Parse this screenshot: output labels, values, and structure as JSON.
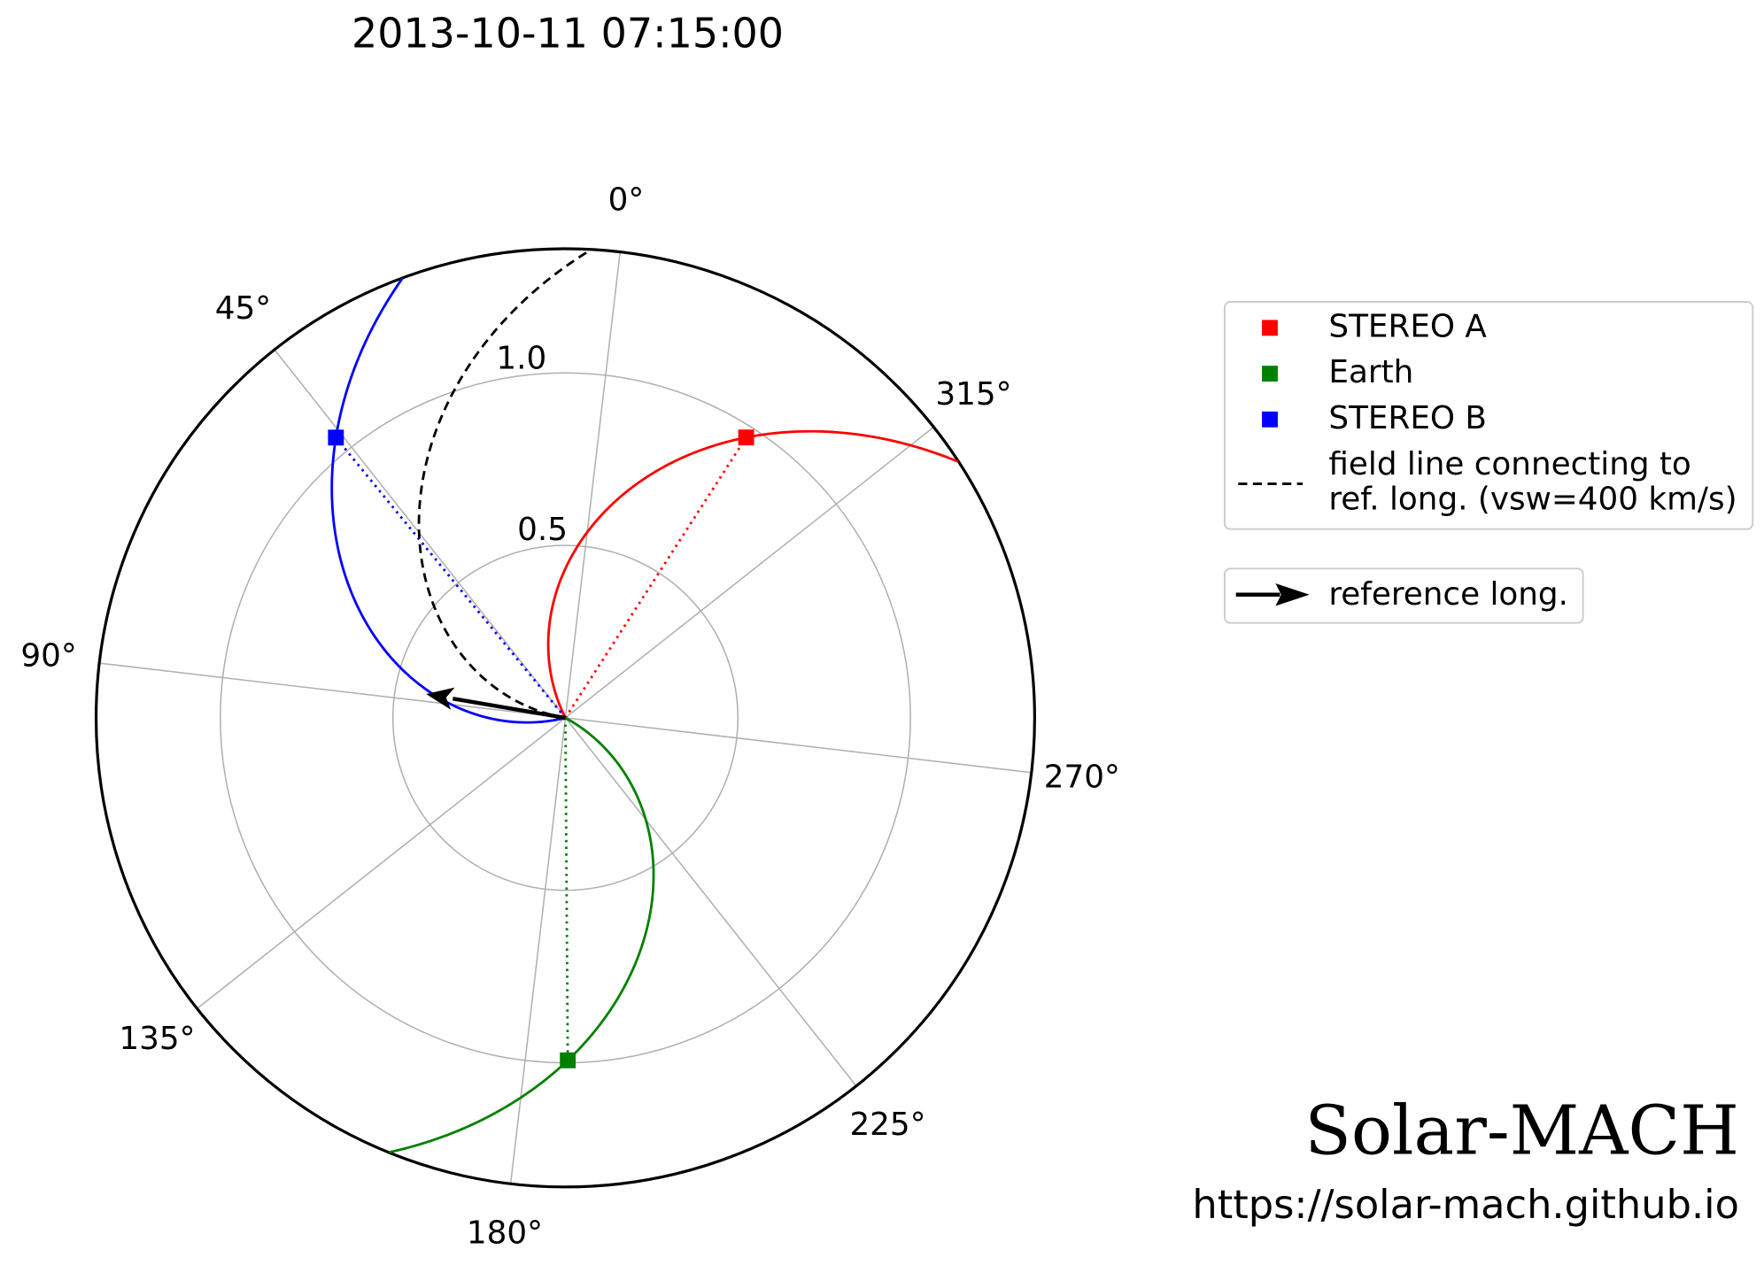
{
  "chart_data": {
    "type": "polar",
    "title": "2013-10-11 07:15:00",
    "rlim": [
      0,
      1.36
    ],
    "rticks": [
      0.5,
      {
        "value": 1,
        "label": "1.0"
      }
    ],
    "thetaticks": [
      {
        "value": 0,
        "label": "0°"
      },
      {
        "value": 45,
        "label": "45°"
      },
      {
        "value": 90,
        "label": "90°"
      },
      {
        "value": 135,
        "label": "135°"
      },
      {
        "value": 180,
        "label": "180°"
      },
      {
        "value": 225,
        "label": "225°"
      },
      {
        "value": 270,
        "label": "270°"
      },
      {
        "value": 315,
        "label": "315°"
      }
    ],
    "theta_zero_offset": 6.7,
    "theta_direction": "counterclockwise",
    "grid": true,
    "vsw": 400,
    "series": [
      {
        "name": "STEREO A",
        "color": "#ff0000",
        "longitude": 333.9,
        "r": 0.967
      },
      {
        "name": "Earth",
        "color": "#008000",
        "longitude": 187.1,
        "r": 0.993
      },
      {
        "name": "STEREO B",
        "color": "#0000ff",
        "longitude": 46.0,
        "r": 1.05
      }
    ],
    "field_line_label": [
      "field line connecting to",
      "ref. long. (vsw=400 km/s)"
    ],
    "reference_longitude": 87,
    "reference_label": "reference long.",
    "legend": "right",
    "brand": "Solar-MACH",
    "url": "https://solar-mach.github.io"
  }
}
